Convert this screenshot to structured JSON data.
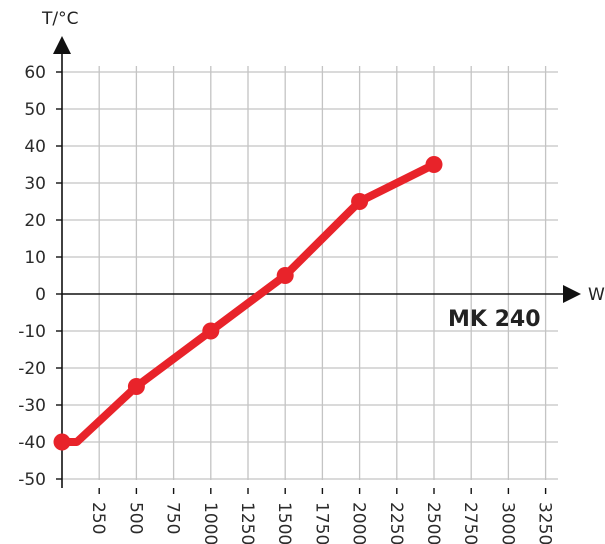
{
  "chart_data": {
    "type": "line",
    "xlabel": "W",
    "ylabel": "T/°C",
    "x_ticks": [
      250,
      500,
      750,
      1000,
      1250,
      1500,
      1750,
      2000,
      2250,
      2500,
      2750,
      3000,
      3250
    ],
    "y_ticks": [
      60,
      50,
      40,
      30,
      20,
      10,
      0,
      -10,
      -20,
      -30,
      -40,
      -50
    ],
    "xlim": [
      0,
      3250
    ],
    "ylim": [
      -50,
      60
    ],
    "grid": true,
    "series": [
      {
        "name": "MK 240",
        "x": [
          0,
          100,
          500,
          1000,
          1500,
          2000,
          2500
        ],
        "y": [
          -40,
          -40,
          -25,
          -10,
          5,
          25,
          35
        ],
        "markers_x": [
          0,
          500,
          1000,
          1500,
          2000,
          2500
        ],
        "markers_y": [
          -40,
          -25,
          -10,
          5,
          25,
          35
        ]
      }
    ],
    "colors": {
      "line": "#e8232a",
      "grid": "#c4c4c4",
      "axis": "#111111"
    }
  }
}
